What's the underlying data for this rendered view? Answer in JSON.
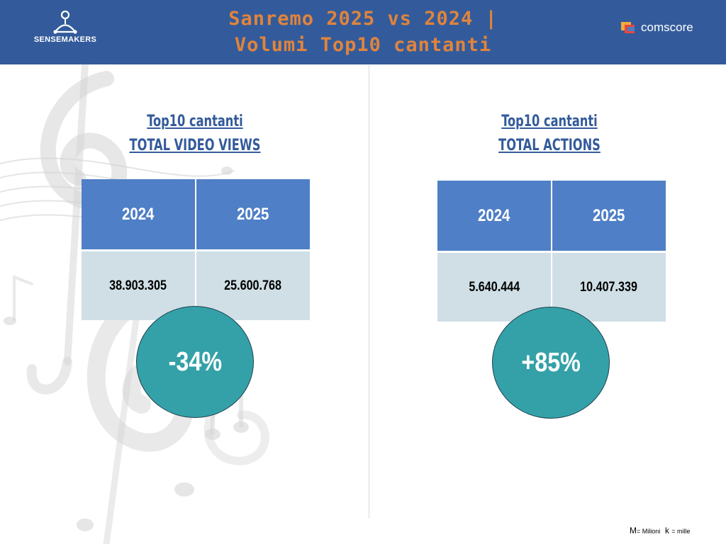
{
  "header": {
    "title_line1": "Sanremo 2025 vs 2024 |",
    "title_line2": "Volumi Top10 cantanti",
    "brand_left": "SENSEMAKERS",
    "brand_right": "comscore",
    "colors": {
      "header_bg": "#335b9b",
      "title": "#e0843c"
    }
  },
  "left_panel": {
    "title_line1": "Top10 cantanti",
    "title_line2": "TOTAL VIDEO VIEWS",
    "columns": [
      "2024",
      "2025"
    ],
    "values": [
      "38.903.305",
      "25.600.768"
    ],
    "change": "-34%"
  },
  "right_panel": {
    "title_line1": "Top10 cantanti",
    "title_line2": "TOTAL ACTIONS",
    "columns": [
      "2024",
      "2025"
    ],
    "values": [
      "5.640.444",
      "10.407.339"
    ],
    "change": "+85%"
  },
  "footnote": {
    "m_letter": "M",
    "m_text": "= Milioni",
    "k_letter": "k",
    "k_text": "= mille"
  },
  "icons": [
    "sensemakers-logo-icon",
    "comscore-logo-icon",
    "music-notes-background"
  ],
  "colors": {
    "table_head": "#4f7fc6",
    "table_values": "#cfdfe5",
    "badge": "#34a1a8",
    "section_title": "#335b9b"
  }
}
